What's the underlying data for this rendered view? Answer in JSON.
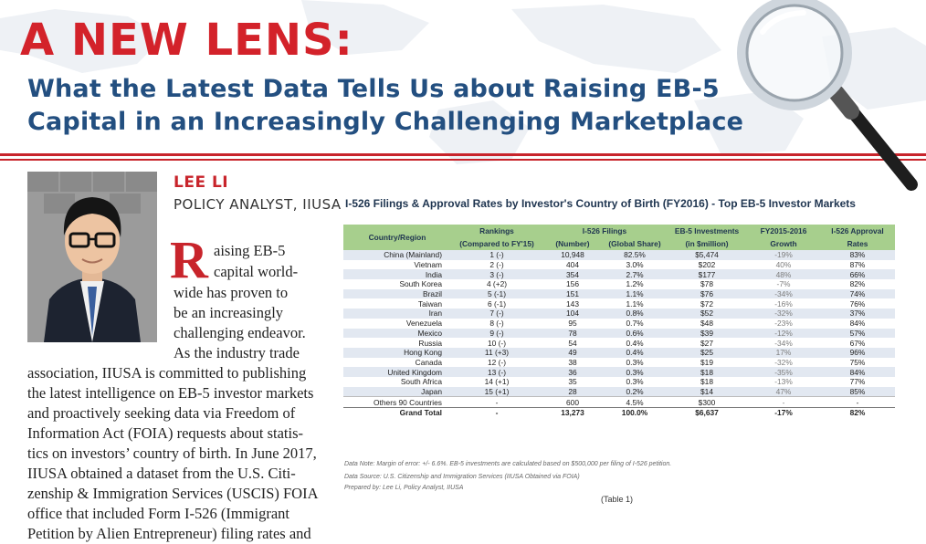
{
  "header": {
    "kicker": "A NEW LENS:",
    "headline_line1": "What the Latest Data Tells Us about Raising EB-5",
    "headline_line2": "Capital in an Increasingly Challenging Marketplace"
  },
  "author": {
    "name": "LEE LI",
    "title": "POLICY ANALYST, IIUSA"
  },
  "article": {
    "drop_cap": "R",
    "lines": [
      "aising EB-5",
      "capital world-",
      "wide has proven to",
      "be an increasingly",
      "challenging endeavor.",
      "As the industry trade",
      "association, IIUSA is committed to publishing",
      "the latest intelligence on EB-5 investor markets",
      "and proactively seeking data via Freedom of",
      "Information Act (FOIA) requests about statis-",
      "tics on investors’ country of birth. In June 2017,",
      "IIUSA obtained a dataset from the U.S. Citi-",
      "zenship & Immigration Services (USCIS) FOIA",
      "office that included Form I-526 (Immigrant",
      "Petition by Alien Entrepreneur) filing rates and"
    ]
  },
  "table": {
    "title": "I-526 Filings & Approval Rates by Investor's Country of Birth (FY2016) - Top EB-5 Investor Markets",
    "headers": {
      "country": "Country/Region",
      "rankings_1": "Rankings",
      "rankings_2": "(Compared to FY'15)",
      "filings_1": "I-526 Filings",
      "filings_number": "(Number)",
      "filings_share": "(Global Share)",
      "investments_1": "EB-5 Investments",
      "investments_2": "(in $million)",
      "growth_1": "FY2015-2016",
      "growth_2": "Growth",
      "approval_1": "I-526 Approval",
      "approval_2": "Rates"
    },
    "rows": [
      {
        "country": "China (Mainland)",
        "rank": "1 (-)",
        "number": "10,948",
        "share": "82.5%",
        "investment": "$5,474",
        "growth": "-19%",
        "approval": "83%"
      },
      {
        "country": "Vietnam",
        "rank": "2 (-)",
        "number": "404",
        "share": "3.0%",
        "investment": "$202",
        "growth": "40%",
        "approval": "87%"
      },
      {
        "country": "India",
        "rank": "3 (-)",
        "number": "354",
        "share": "2.7%",
        "investment": "$177",
        "growth": "48%",
        "approval": "66%"
      },
      {
        "country": "South Korea",
        "rank": "4 (+2)",
        "number": "156",
        "share": "1.2%",
        "investment": "$78",
        "growth": "-7%",
        "approval": "82%"
      },
      {
        "country": "Brazil",
        "rank": "5 (-1)",
        "number": "151",
        "share": "1.1%",
        "investment": "$76",
        "growth": "-34%",
        "approval": "74%"
      },
      {
        "country": "Taiwan",
        "rank": "6 (-1)",
        "number": "143",
        "share": "1.1%",
        "investment": "$72",
        "growth": "-16%",
        "approval": "76%"
      },
      {
        "country": "Iran",
        "rank": "7 (-)",
        "number": "104",
        "share": "0.8%",
        "investment": "$52",
        "growth": "-32%",
        "approval": "37%"
      },
      {
        "country": "Venezuela",
        "rank": "8 (-)",
        "number": "95",
        "share": "0.7%",
        "investment": "$48",
        "growth": "-23%",
        "approval": "84%"
      },
      {
        "country": "Mexico",
        "rank": "9 (-)",
        "number": "78",
        "share": "0.6%",
        "investment": "$39",
        "growth": "-12%",
        "approval": "57%"
      },
      {
        "country": "Russia",
        "rank": "10 (-)",
        "number": "54",
        "share": "0.4%",
        "investment": "$27",
        "growth": "-34%",
        "approval": "67%"
      },
      {
        "country": "Hong Kong",
        "rank": "11 (+3)",
        "number": "49",
        "share": "0.4%",
        "investment": "$25",
        "growth": "17%",
        "approval": "96%"
      },
      {
        "country": "Canada",
        "rank": "12 (-)",
        "number": "38",
        "share": "0.3%",
        "investment": "$19",
        "growth": "-32%",
        "approval": "75%"
      },
      {
        "country": "United Kingdom",
        "rank": "13 (-)",
        "number": "36",
        "share": "0.3%",
        "investment": "$18",
        "growth": "-35%",
        "approval": "84%"
      },
      {
        "country": "South Africa",
        "rank": "14 (+1)",
        "number": "35",
        "share": "0.3%",
        "investment": "$18",
        "growth": "-13%",
        "approval": "77%"
      },
      {
        "country": "Japan",
        "rank": "15 (+1)",
        "number": "28",
        "share": "0.2%",
        "investment": "$14",
        "growth": "47%",
        "approval": "85%"
      }
    ],
    "others": {
      "country": "Others 90 Countries",
      "rank": "-",
      "number": "600",
      "share": "4.5%",
      "investment": "$300",
      "growth": "-",
      "approval": "-"
    },
    "total": {
      "country": "Grand Total",
      "rank": "-",
      "number": "13,273",
      "share": "100.0%",
      "investment": "$6,637",
      "growth": "-17%",
      "approval": "82%"
    },
    "notes": {
      "data_note": "Data Note: Margin of error: +/- 6.6%. EB-5 investments are calculated based on $500,000 per filing of I-526 petition.",
      "data_source": "Data Source: U.S. Citizenship and Immigration Services (IIUSA Obtained via FOIA)",
      "prepared_by": "Prepared by: Lee Li, Policy Analyst, IIUSA"
    },
    "caption": "(Table 1)"
  },
  "colors": {
    "kicker_red": "#d3222a",
    "headline_blue": "#234f80",
    "table_header_green": "#a7cf8d",
    "row_shade": "#e2e8f1"
  }
}
